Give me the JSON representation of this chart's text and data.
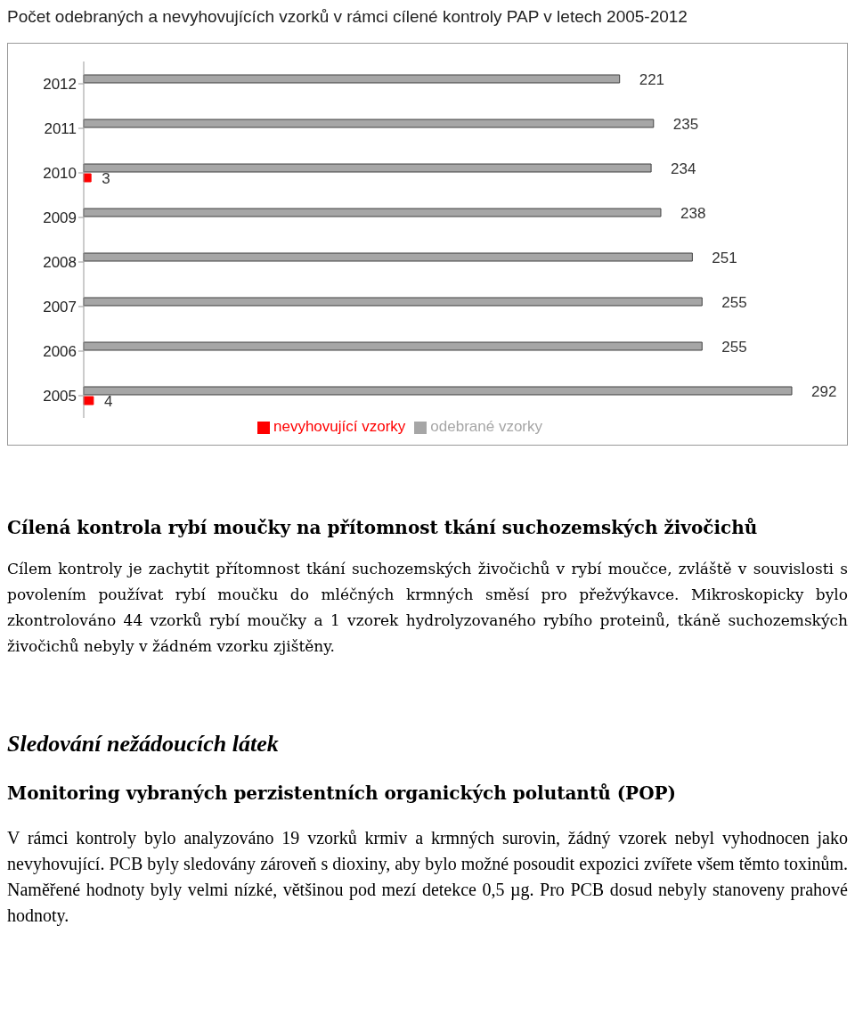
{
  "chart_data": {
    "type": "bar",
    "orientation": "horizontal",
    "title": "Počet odebraných a nevyhovujících vzorků v rámci cílené kontroly PAP v letech 2005-2012",
    "categories": [
      "2012",
      "2011",
      "2010",
      "2009",
      "2008",
      "2007",
      "2006",
      "2005"
    ],
    "series": [
      {
        "name": "odebrané vzorky",
        "color": "#a6a6a6",
        "values": [
          221,
          235,
          234,
          238,
          251,
          255,
          255,
          292
        ]
      },
      {
        "name": "nevyhovující vzorky",
        "color": "#ff0000",
        "values": [
          null,
          null,
          3,
          null,
          null,
          null,
          null,
          4
        ]
      }
    ],
    "data_labels": true,
    "legend": "bottom",
    "annotations": [
      "Cílená kontrola rybí moučky na přítomnost tkání suchozemských živočichů",
      "Cílem kontroly je zachytit přítomnost tkání suchozemských živočichů v rybí moučce, zvláště v souvislosti s povolením používat rybí moučku do mléčných krmných směsí pro přežvýkavce. Mikroskopicky bylo zkontrolováno 44 vzorků rybí moučky a 1 vzorek hydrolyzovaného rybího proteinů, tkáně suchozemských živočichů nebyly v žádném vzorku zjištěny.",
      "Sledování nežádoucích látek",
      "Monitoring vybraných perzistentních organických polutantů (POP)",
      "V rámci kontroly bylo analyzováno 19 vzorků krmiv a krmných surovin, žádný vzorek nebyl vyhodnocen jako nevyhovující. PCB byly sledovány zároveň s dioxiny, aby bylo možné posoudit expozici zvířete všem těmto toxinům. Naměřené hodnoty byly velmi nízké, většinou pod mezí detekce 0,5 µg. Pro PCB dosud nebyly stanoveny prahové hodnoty."
    ]
  }
}
